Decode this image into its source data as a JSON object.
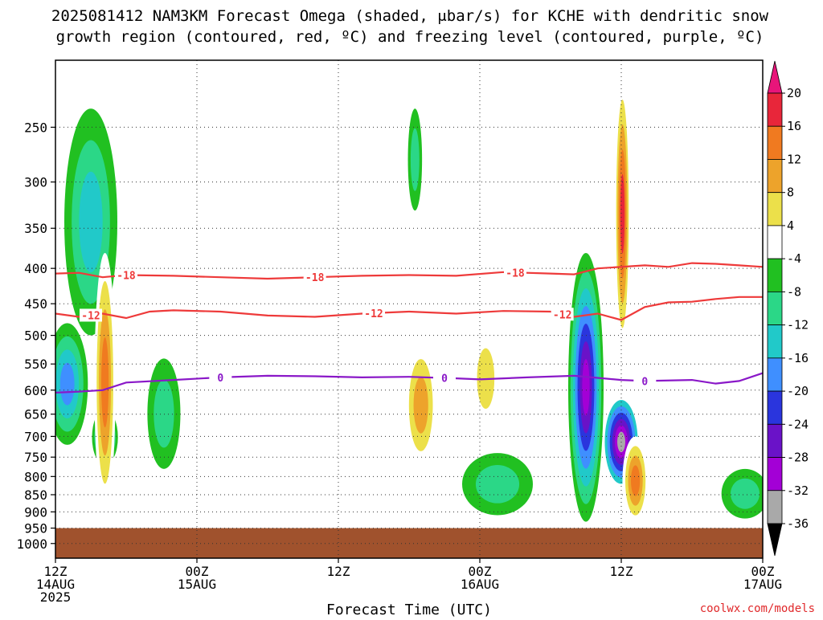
{
  "title": {
    "line1": "2025081412 NAM3KM Forecast Omega (shaded, μbar/s) for KCHE with dendritic snow",
    "line2": "growth region (contoured, red, ºC) and freezing level (contoured, purple, ºC)"
  },
  "credit": "coolwx.com/models",
  "chart_data": {
    "type": "time-height",
    "title": "2025081412 NAM3KM Forecast Omega (shaded, μbar/s) for KCHE with dendritic snow growth region (contoured, red, ºC) and freezing level (contoured, purple, ºC)",
    "xlabel": "Forecast Time (UTC)",
    "ylabel": "",
    "x_range_hours": [
      0,
      60
    ],
    "x_ticks": [
      {
        "hour": 0,
        "line1": "12Z",
        "line2": "14AUG",
        "line3": "2025"
      },
      {
        "hour": 12,
        "line1": "00Z",
        "line2": "15AUG",
        "line3": ""
      },
      {
        "hour": 24,
        "line1": "12Z",
        "line2": "",
        "line3": ""
      },
      {
        "hour": 36,
        "line1": "00Z",
        "line2": "16AUG",
        "line3": ""
      },
      {
        "hour": 48,
        "line1": "12Z",
        "line2": "",
        "line3": ""
      },
      {
        "hour": 60,
        "line1": "00Z",
        "line2": "17AUG",
        "line3": ""
      }
    ],
    "y_scale": "log-pressure",
    "y_range_mb": [
      1050,
      200
    ],
    "y_ticks": [
      "250",
      "300",
      "350",
      "400",
      "450",
      "500",
      "550",
      "600",
      "650",
      "700",
      "750",
      "800",
      "850",
      "900",
      "950",
      "1000"
    ],
    "grid": true,
    "terrain": {
      "top_mb": 950,
      "color": "#a0522d"
    },
    "colorbar": {
      "placement": "right",
      "labels": [
        "20",
        "16",
        "12",
        "8",
        "4",
        "-4",
        "-8",
        "-12",
        "-16",
        "-20",
        "-24",
        "-28",
        "-32",
        "-36"
      ],
      "bands": [
        {
          "from": 16,
          "to": 20,
          "color": "#e8263a"
        },
        {
          "from": 12,
          "to": 16,
          "color": "#f07a20"
        },
        {
          "from": 8,
          "to": 12,
          "color": "#eda32b"
        },
        {
          "from": 4,
          "to": 8,
          "color": "#ece04a"
        },
        {
          "from": -4,
          "to": 4,
          "color": "#ffffff"
        },
        {
          "from": -8,
          "to": -4,
          "color": "#21c021"
        },
        {
          "from": -12,
          "to": -8,
          "color": "#2bd787"
        },
        {
          "from": -16,
          "to": -12,
          "color": "#21c9c9"
        },
        {
          "from": -20,
          "to": -16,
          "color": "#3f8fff"
        },
        {
          "from": -24,
          "to": -20,
          "color": "#2a35dd"
        },
        {
          "from": -28,
          "to": -24,
          "color": "#6a12c8"
        },
        {
          "from": -32,
          "to": -28,
          "color": "#a300d6"
        },
        {
          "from": -36,
          "to": -32,
          "color": "#a9a9a9"
        }
      ],
      "top_arrow_color": "#e8157a",
      "bottom_arrow_color": "#000000"
    },
    "contours": [
      {
        "name": "-18",
        "color": "#ee3a3a",
        "points": [
          [
            0,
            407
          ],
          [
            2,
            406
          ],
          [
            4,
            412
          ],
          [
            6,
            409
          ],
          [
            10,
            410
          ],
          [
            14,
            412
          ],
          [
            18,
            414
          ],
          [
            22,
            412
          ],
          [
            26,
            410
          ],
          [
            30,
            409
          ],
          [
            34,
            410
          ],
          [
            38,
            405
          ],
          [
            42,
            407
          ],
          [
            44,
            408
          ],
          [
            46,
            400
          ],
          [
            50,
            396
          ],
          [
            52,
            398
          ],
          [
            54,
            393
          ],
          [
            56,
            394
          ],
          [
            58,
            396
          ],
          [
            60,
            398
          ]
        ],
        "labels": [
          {
            "hour": 6,
            "text": "-18"
          },
          {
            "hour": 22,
            "text": "-18"
          },
          {
            "hour": 39,
            "text": "-18"
          }
        ]
      },
      {
        "name": "-12",
        "color": "#ee3a3a",
        "points": [
          [
            0,
            465
          ],
          [
            2,
            470
          ],
          [
            4,
            465
          ],
          [
            6,
            472
          ],
          [
            8,
            462
          ],
          [
            10,
            460
          ],
          [
            14,
            462
          ],
          [
            18,
            468
          ],
          [
            22,
            470
          ],
          [
            26,
            465
          ],
          [
            30,
            462
          ],
          [
            34,
            465
          ],
          [
            38,
            461
          ],
          [
            42,
            462
          ],
          [
            44,
            470
          ],
          [
            46,
            465
          ],
          [
            48,
            475
          ],
          [
            50,
            455
          ],
          [
            52,
            448
          ],
          [
            54,
            447
          ],
          [
            56,
            443
          ],
          [
            58,
            440
          ],
          [
            60,
            440
          ]
        ],
        "labels": [
          {
            "hour": 3,
            "text": "-12"
          },
          {
            "hour": 27,
            "text": "-12"
          },
          {
            "hour": 43,
            "text": "-12"
          }
        ]
      },
      {
        "name": "0",
        "color": "#8a18c8",
        "points": [
          [
            0,
            605
          ],
          [
            2,
            603
          ],
          [
            4,
            600
          ],
          [
            6,
            585
          ],
          [
            10,
            580
          ],
          [
            14,
            575
          ],
          [
            18,
            572
          ],
          [
            22,
            573
          ],
          [
            26,
            575
          ],
          [
            30,
            574
          ],
          [
            34,
            577
          ],
          [
            36,
            579
          ],
          [
            40,
            575
          ],
          [
            44,
            572
          ],
          [
            48,
            580
          ],
          [
            50,
            582
          ],
          [
            54,
            580
          ],
          [
            56,
            587
          ],
          [
            58,
            582
          ],
          [
            60,
            567
          ]
        ],
        "labels": [
          {
            "hour": 14,
            "text": "0"
          },
          {
            "hour": 33,
            "text": "0"
          },
          {
            "hour": 50,
            "text": "0"
          }
        ]
      }
    ],
    "omega_features": [
      {
        "name": "upward-left-column",
        "hour": 3.0,
        "p_top": 235,
        "p_bot": 500,
        "width_h": 4.5,
        "levels": [
          -8,
          -12,
          -16
        ]
      },
      {
        "name": "upward-left-low",
        "hour": 1.0,
        "p_top": 480,
        "p_bot": 720,
        "width_h": 3.5,
        "levels": [
          -8,
          -12,
          -16,
          -20
        ]
      },
      {
        "name": "upward-left-core",
        "hour": 4.2,
        "p_top": 640,
        "p_bot": 770,
        "width_h": 2.2,
        "levels": [
          -8,
          -12,
          -16,
          -20,
          -24
        ]
      },
      {
        "name": "downward-left",
        "hour": 4.2,
        "p_top": 380,
        "p_bot": 900,
        "width_h": 1.8,
        "levels": [
          4,
          8,
          12,
          16
        ]
      },
      {
        "name": "upward-mid-left",
        "hour": 9.2,
        "p_top": 540,
        "p_bot": 780,
        "width_h": 2.8,
        "levels": [
          -8,
          -12
        ]
      },
      {
        "name": "downward-day2",
        "hour": 31.0,
        "p_top": 510,
        "p_bot": 780,
        "width_h": 2.8,
        "levels": [
          4,
          8,
          12
        ]
      },
      {
        "name": "upward-day2-top",
        "hour": 30.5,
        "p_top": 235,
        "p_bot": 330,
        "width_h": 1.2,
        "levels": [
          -8,
          -12
        ]
      },
      {
        "name": "downward-day3",
        "hour": 36.5,
        "p_top": 490,
        "p_bot": 680,
        "width_h": 2.4,
        "levels": [
          4,
          8
        ]
      },
      {
        "name": "upward-day3-low",
        "hour": 37.5,
        "p_top": 740,
        "p_bot": 910,
        "width_h": 6.0,
        "levels": [
          -8,
          -12
        ]
      },
      {
        "name": "upward-strong-column",
        "hour": 45.0,
        "p_top": 380,
        "p_bot": 930,
        "width_h": 3.0,
        "levels": [
          -8,
          -12,
          -16,
          -20,
          -24,
          -28,
          -32
        ]
      },
      {
        "name": "upward-strong-core",
        "hour": 48.0,
        "p_top": 620,
        "p_bot": 820,
        "width_h": 2.8,
        "levels": [
          -16,
          -20,
          -24,
          -28,
          -32,
          -36
        ]
      },
      {
        "name": "downward-strong-column",
        "hour": 48.1,
        "p_top": 210,
        "p_bot": 530,
        "width_h": 1.3,
        "levels": [
          4,
          8,
          12,
          16,
          20
        ]
      },
      {
        "name": "downward-low-right",
        "hour": 49.2,
        "p_top": 700,
        "p_bot": 940,
        "width_h": 2.2,
        "levels": [
          4,
          8,
          12,
          16
        ]
      },
      {
        "name": "upward-right",
        "hour": 58.5,
        "p_top": 780,
        "p_bot": 920,
        "width_h": 4.0,
        "levels": [
          -8,
          -12
        ]
      }
    ]
  }
}
